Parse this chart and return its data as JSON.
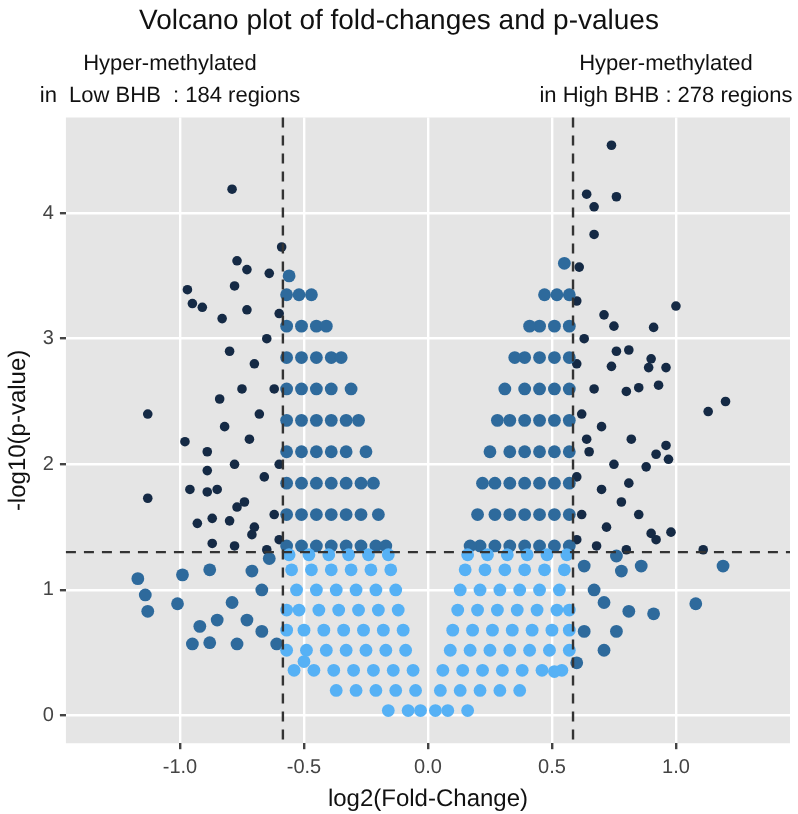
{
  "chart_data": {
    "type": "scatter",
    "title": "Volcano plot of fold-changes and p-values",
    "xlabel": "log2(Fold-Change)",
    "ylabel": "-log10(p-value)",
    "annotations": [
      "Hyper-methylated\nin  Low BHB  : 184 regions",
      "Hyper-methylated\nin High BHB : 278 regions"
    ],
    "xlim": [
      -1.46,
      1.46
    ],
    "ylim": [
      -0.22,
      4.76
    ],
    "xticks": [
      {
        "value": -1,
        "label": "-1.0"
      },
      -0.5,
      {
        "value": 0,
        "label": "0.0"
      },
      0.5,
      {
        "value": 1,
        "label": "1.0"
      }
    ],
    "yticks": [
      0,
      1,
      2,
      3,
      4
    ],
    "grid": true,
    "legend": false,
    "marker": "circle",
    "ref_lines": [
      {
        "axis": "x",
        "value": -0.585,
        "label": null,
        "color": "#333333",
        "line_style": "dashed"
      },
      {
        "axis": "x",
        "value": 0.585,
        "label": null,
        "color": "#333333",
        "line_style": "dashed"
      },
      {
        "axis": "y",
        "value": 1.301,
        "label": null,
        "color": "#333333",
        "line_style": "dashed"
      }
    ],
    "series": [
      {
        "color": "#56b1f5",
        "x": [
          -0.16,
          -0.08,
          -0.03,
          0.03,
          0.08,
          0.16,
          -0.37,
          -0.29,
          -0.21,
          -0.13,
          -0.05,
          0.05,
          0.13,
          0.21,
          0.29,
          0.37,
          -0.54,
          -0.46,
          -0.38,
          -0.3,
          -0.22,
          -0.14,
          -0.06,
          0.06,
          0.14,
          0.22,
          0.3,
          0.38,
          0.46,
          0.54,
          -0.57,
          -0.49,
          -0.41,
          -0.33,
          -0.25,
          -0.17,
          -0.09,
          0.09,
          0.17,
          0.25,
          0.33,
          0.41,
          0.49,
          0.57,
          -0.57,
          -0.5,
          -0.42,
          -0.34,
          -0.26,
          -0.18,
          -0.1,
          0.1,
          0.18,
          0.26,
          0.34,
          0.42,
          0.5,
          0.57,
          -0.57,
          -0.52,
          -0.44,
          -0.36,
          -0.28,
          -0.2,
          -0.12,
          0.12,
          0.2,
          0.28,
          0.36,
          0.44,
          0.52,
          0.57,
          -0.53,
          -0.45,
          -0.37,
          -0.29,
          -0.21,
          -0.13,
          0.13,
          0.21,
          0.29,
          0.37,
          0.45,
          0.53,
          -0.55,
          -0.47,
          -0.39,
          -0.31,
          -0.23,
          -0.15,
          0.15,
          0.23,
          0.31,
          0.39,
          0.47,
          0.55,
          -0.56,
          -0.48,
          -0.4,
          -0.32,
          -0.24,
          -0.16,
          0.16,
          0.24,
          0.32,
          0.4,
          0.48,
          0.56,
          0.51,
          -0.5
        ],
        "values": [
          0.04,
          0.04,
          0.04,
          0.04,
          0.04,
          0.04,
          0.2,
          0.2,
          0.2,
          0.2,
          0.2,
          0.2,
          0.2,
          0.2,
          0.2,
          0.2,
          0.36,
          0.36,
          0.36,
          0.36,
          0.36,
          0.36,
          0.36,
          0.36,
          0.36,
          0.36,
          0.36,
          0.36,
          0.36,
          0.36,
          0.52,
          0.52,
          0.52,
          0.52,
          0.52,
          0.52,
          0.52,
          0.52,
          0.52,
          0.52,
          0.52,
          0.52,
          0.52,
          0.52,
          0.68,
          0.68,
          0.68,
          0.68,
          0.68,
          0.68,
          0.68,
          0.68,
          0.68,
          0.68,
          0.68,
          0.68,
          0.68,
          0.68,
          0.84,
          0.84,
          0.84,
          0.84,
          0.84,
          0.84,
          0.84,
          0.84,
          0.84,
          0.84,
          0.84,
          0.84,
          0.84,
          0.84,
          1.0,
          1.0,
          1.0,
          1.0,
          1.0,
          1.0,
          1.0,
          1.0,
          1.0,
          1.0,
          1.0,
          1.0,
          1.16,
          1.16,
          1.16,
          1.16,
          1.16,
          1.16,
          1.16,
          1.16,
          1.16,
          1.16,
          1.16,
          1.16,
          1.28,
          1.28,
          1.28,
          1.28,
          1.28,
          1.28,
          1.28,
          1.28,
          1.28,
          1.28,
          1.28,
          1.28,
          0.35,
          0.43
        ]
      },
      {
        "color": "#2e6a9c",
        "x": [
          -0.57,
          -0.51,
          -0.45,
          -0.39,
          -0.33,
          -0.27,
          -0.21,
          -0.17,
          -0.57,
          -0.51,
          -0.45,
          -0.39,
          -0.33,
          -0.27,
          -0.2,
          -0.57,
          -0.51,
          -0.45,
          -0.39,
          -0.33,
          -0.27,
          -0.22,
          -0.57,
          -0.51,
          -0.45,
          -0.39,
          -0.33,
          -0.25,
          -0.57,
          -0.51,
          -0.45,
          -0.39,
          -0.33,
          -0.28,
          -0.57,
          -0.51,
          -0.45,
          -0.39,
          -0.31,
          -0.57,
          -0.51,
          -0.45,
          -0.39,
          -0.35,
          -0.57,
          -0.51,
          -0.45,
          -0.41,
          -0.57,
          -0.52,
          -0.47,
          -0.56,
          0.57,
          0.51,
          0.45,
          0.39,
          0.33,
          0.27,
          0.21,
          0.17,
          0.57,
          0.51,
          0.45,
          0.39,
          0.33,
          0.27,
          0.2,
          0.57,
          0.51,
          0.45,
          0.39,
          0.33,
          0.27,
          0.22,
          0.57,
          0.51,
          0.45,
          0.39,
          0.33,
          0.25,
          0.57,
          0.51,
          0.45,
          0.39,
          0.33,
          0.28,
          0.57,
          0.51,
          0.45,
          0.39,
          0.31,
          0.57,
          0.51,
          0.45,
          0.39,
          0.35,
          0.57,
          0.51,
          0.45,
          0.41,
          0.57,
          0.52,
          0.47,
          0.55,
          -1.17,
          -1.14,
          -1.13,
          -0.99,
          -1.01,
          -0.95,
          -0.88,
          -0.77,
          -0.85,
          -0.88,
          -0.92,
          -0.79,
          -0.73,
          -0.67,
          -0.64,
          -0.67,
          -0.61,
          -0.71,
          1.19,
          1.08,
          0.91,
          0.81,
          0.71,
          0.63,
          0.71,
          0.78,
          0.86,
          0.63,
          0.67,
          0.76,
          0.6,
          0.76
        ],
        "values": [
          1.35,
          1.35,
          1.35,
          1.35,
          1.35,
          1.35,
          1.35,
          1.35,
          1.6,
          1.6,
          1.6,
          1.6,
          1.6,
          1.6,
          1.6,
          1.85,
          1.85,
          1.85,
          1.85,
          1.85,
          1.85,
          1.85,
          2.1,
          2.1,
          2.1,
          2.1,
          2.1,
          2.1,
          2.35,
          2.35,
          2.35,
          2.35,
          2.35,
          2.35,
          2.6,
          2.6,
          2.6,
          2.6,
          2.6,
          2.85,
          2.85,
          2.85,
          2.85,
          2.85,
          3.1,
          3.1,
          3.1,
          3.1,
          3.35,
          3.35,
          3.35,
          3.5,
          1.35,
          1.35,
          1.35,
          1.35,
          1.35,
          1.35,
          1.35,
          1.35,
          1.6,
          1.6,
          1.6,
          1.6,
          1.6,
          1.6,
          1.6,
          1.85,
          1.85,
          1.85,
          1.85,
          1.85,
          1.85,
          1.85,
          2.1,
          2.1,
          2.1,
          2.1,
          2.1,
          2.1,
          2.35,
          2.35,
          2.35,
          2.35,
          2.35,
          2.35,
          2.6,
          2.6,
          2.6,
          2.6,
          2.6,
          2.85,
          2.85,
          2.85,
          2.85,
          2.85,
          3.1,
          3.1,
          3.1,
          3.1,
          3.35,
          3.35,
          3.35,
          3.6,
          1.09,
          0.96,
          0.83,
          1.12,
          0.89,
          0.57,
          0.58,
          0.57,
          0.76,
          1.16,
          0.71,
          0.9,
          0.76,
          1.0,
          1.25,
          0.67,
          0.57,
          1.15,
          1.19,
          0.89,
          0.81,
          0.83,
          0.52,
          0.67,
          0.9,
          1.15,
          1.19,
          1.19,
          1.0,
          0.67,
          0.42,
          1.27
        ]
      },
      {
        "color": "#152a45",
        "x": [
          -0.79,
          -0.59,
          -0.77,
          -0.73,
          -0.97,
          -0.95,
          -0.91,
          -0.78,
          -0.64,
          -0.73,
          -0.83,
          -1.13,
          -0.98,
          -0.84,
          -0.89,
          -0.89,
          -1.13,
          -0.96,
          -0.89,
          -0.93,
          -0.87,
          -0.87,
          -0.77,
          -0.71,
          -0.6,
          -0.65,
          -0.7,
          -0.62,
          -0.68,
          -0.72,
          -0.6,
          -0.66,
          -0.74,
          -0.62,
          -0.7,
          -0.6,
          -0.78,
          -0.65,
          -0.8,
          -0.75,
          -0.82,
          -0.78,
          -0.85,
          -0.8,
          0.74,
          0.64,
          0.76,
          0.67,
          0.67,
          0.61,
          1.0,
          0.91,
          0.71,
          0.75,
          0.76,
          0.81,
          0.9,
          0.96,
          0.89,
          0.74,
          0.93,
          0.85,
          0.8,
          1.2,
          1.13,
          0.96,
          0.92,
          0.97,
          0.88,
          0.98,
          1.11,
          0.92,
          0.81,
          0.6,
          0.63,
          0.6,
          0.67,
          0.62,
          0.7,
          0.65,
          0.75,
          0.6,
          0.7,
          0.78,
          0.62,
          0.85,
          0.72,
          0.6,
          0.9,
          0.68,
          0.8,
          0.64,
          0.82
        ],
        "values": [
          4.19,
          3.73,
          3.62,
          3.55,
          3.39,
          3.28,
          3.25,
          3.42,
          3.52,
          3.23,
          3.16,
          2.4,
          2.18,
          2.52,
          2.1,
          1.95,
          1.73,
          1.8,
          1.78,
          1.53,
          1.57,
          1.37,
          1.66,
          1.44,
          3.2,
          3.0,
          2.8,
          2.6,
          2.4,
          2.2,
          2.0,
          1.9,
          1.7,
          1.6,
          1.5,
          1.4,
          1.35,
          1.32,
          2.9,
          2.6,
          2.3,
          2.0,
          1.8,
          1.55,
          4.54,
          4.15,
          4.13,
          4.05,
          3.83,
          3.57,
          3.26,
          3.09,
          3.19,
          3.1,
          2.9,
          2.91,
          2.84,
          2.77,
          2.77,
          2.78,
          2.63,
          2.61,
          2.58,
          2.5,
          2.42,
          2.15,
          2.08,
          2.04,
          1.98,
          1.46,
          1.32,
          1.4,
          1.85,
          3.3,
          3.0,
          2.8,
          2.6,
          2.4,
          2.3,
          2.1,
          2.0,
          1.9,
          1.8,
          1.7,
          1.6,
          1.6,
          1.5,
          1.4,
          1.45,
          1.35,
          1.32,
          2.2,
          2.2
        ]
      }
    ]
  }
}
